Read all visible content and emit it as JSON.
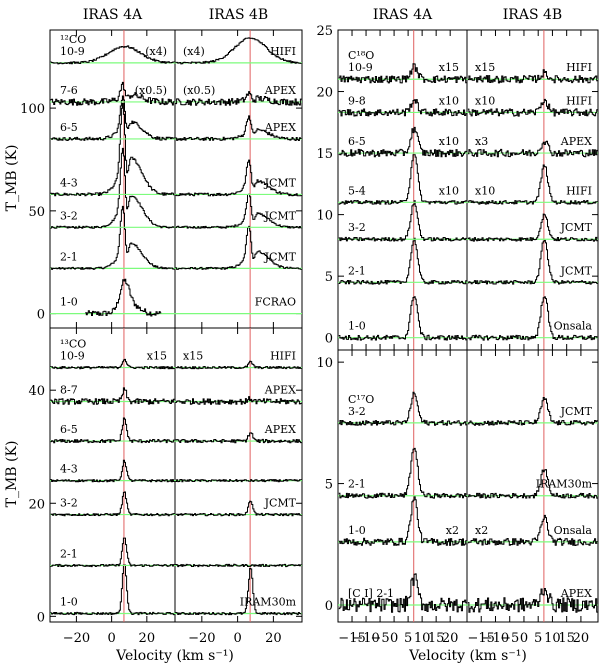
{
  "chart_data": {
    "type": "line",
    "xlabel": "Velocity (km s⁻¹)",
    "ylabel": "T_MB (K)",
    "source_velocity": 7,
    "baseline_color": "#7CFC7C",
    "source_line_color": "#E06060",
    "spectrum_color": "#000000",
    "groups": [
      {
        "id": "12co",
        "species_label": "¹²CO",
        "yticks": [
          0,
          50,
          100
        ],
        "ylim": [
          -7,
          138
        ],
        "xlim": [
          -35,
          36
        ],
        "xticks": [
          -20,
          0,
          20
        ],
        "sources": [
          "IRAS 4A",
          "IRAS 4B"
        ],
        "lines": [
          {
            "transition": "1-0",
            "telescope": "FCRAO",
            "offset": 0,
            "factorA": "",
            "factorB": "",
            "peakA": 12,
            "peakB": 0,
            "noise": 1.4,
            "profile": "fcrao",
            "xminA": -15,
            "xmaxA": 28
          },
          {
            "transition": "2-1",
            "telescope": "JCMT",
            "offset": 22,
            "factorA": "",
            "factorB": "",
            "peakA": 22,
            "peakB": 15,
            "noise": 0.5,
            "profile": "outflow"
          },
          {
            "transition": "3-2",
            "telescope": "JCMT",
            "offset": 42,
            "factorA": "",
            "factorB": "",
            "peakA": 28,
            "peakB": 12,
            "noise": 0.5,
            "profile": "outflow"
          },
          {
            "transition": "4-3",
            "telescope": "JCMT",
            "offset": 58,
            "factorA": "",
            "factorB": "",
            "peakA": 32,
            "peakB": 12,
            "noise": 0.7,
            "profile": "outflow"
          },
          {
            "transition": "6-5",
            "telescope": "APEX",
            "offset": 85,
            "factorA": "",
            "factorB": "",
            "peakA": 15,
            "peakB": 8,
            "noise": 0.8,
            "profile": "outflow"
          },
          {
            "transition": "7-6",
            "telescope": "APEX",
            "offset": 103,
            "factorA": "(x0.5)",
            "factorB": "(x0.5)",
            "peakA": 6,
            "peakB": 3,
            "noise": 1.6,
            "profile": "outflow"
          },
          {
            "transition": "10-9",
            "telescope": "HIFI",
            "offset": 122,
            "factorA": "(x4)",
            "factorB": "(x4)",
            "peakA": 8,
            "peakB": 12,
            "noise": 0.5,
            "profile": "broad"
          }
        ]
      },
      {
        "id": "13co",
        "species_label": "¹³CO",
        "yticks": [
          0,
          20,
          40
        ],
        "ylim": [
          -1,
          51
        ],
        "xlim": [
          -35,
          36
        ],
        "xticks": [
          -20,
          0,
          20
        ],
        "sources": [
          "IRAS 4A",
          "IRAS 4B"
        ],
        "lines": [
          {
            "transition": "1-0",
            "telescope": "IRAM30m",
            "offset": 0.5,
            "factorA": "",
            "factorB": "",
            "peakA": 9,
            "peakB": 8,
            "noise": 0.2,
            "profile": "narrow"
          },
          {
            "transition": "2-1",
            "telescope": "",
            "offset": 9,
            "factorA": "",
            "factorB": "",
            "peakA": 5,
            "peakB": 0,
            "noise": 0.2,
            "profile": "narrow"
          },
          {
            "transition": "3-2",
            "telescope": "JCMT",
            "offset": 18,
            "factorA": "",
            "factorB": "",
            "peakA": 4,
            "peakB": 2.5,
            "noise": 0.2,
            "profile": "narrow"
          },
          {
            "transition": "4-3",
            "telescope": "",
            "offset": 24,
            "factorA": "",
            "factorB": "",
            "peakA": 3.5,
            "peakB": 0,
            "noise": 0.2,
            "profile": "narrow"
          },
          {
            "transition": "6-5",
            "telescope": "APEX",
            "offset": 31,
            "factorA": "",
            "factorB": "",
            "peakA": 4,
            "peakB": 1.5,
            "noise": 0.3,
            "profile": "narrow"
          },
          {
            "transition": "8-7",
            "telescope": "APEX",
            "offset": 38,
            "factorA": "",
            "factorB": "",
            "peakA": 2,
            "peakB": 0.5,
            "noise": 0.5,
            "profile": "narrow"
          },
          {
            "transition": "10-9",
            "telescope": "HIFI",
            "offset": 44,
            "factorA": "x15",
            "factorB": "x15",
            "peakA": 1.5,
            "peakB": 1,
            "noise": 0.2,
            "profile": "narrow"
          }
        ]
      },
      {
        "id": "c18o",
        "species_label": "C¹⁸O",
        "yticks": [
          0,
          5,
          10,
          15,
          20,
          25
        ],
        "ylim": [
          -1,
          25
        ],
        "xlim": [
          -20,
          26
        ],
        "xticks": [
          -15,
          -10,
          -5,
          0,
          5,
          10,
          15,
          20
        ],
        "sources": [
          "IRAS 4A",
          "IRAS 4B"
        ],
        "lines": [
          {
            "transition": "1-0",
            "telescope": "Onsala",
            "offset": 0,
            "factorA": "",
            "factorB": "",
            "peakA": 3.5,
            "peakB": 3.5,
            "noise": 0.2,
            "profile": "narrow"
          },
          {
            "transition": "2-1",
            "telescope": "JCMT",
            "offset": 4.5,
            "factorA": "",
            "factorB": "",
            "peakA": 3.5,
            "peakB": 3.5,
            "noise": 0.15,
            "profile": "narrow"
          },
          {
            "transition": "3-2",
            "telescope": "JCMT",
            "offset": 8,
            "factorA": "",
            "factorB": "",
            "peakA": 3,
            "peakB": 2,
            "noise": 0.15,
            "profile": "narrow"
          },
          {
            "transition": "5-4",
            "telescope": "HIFI",
            "offset": 11,
            "factorA": "x10",
            "factorB": "x10",
            "peakA": 4,
            "peakB": 3,
            "noise": 0.15,
            "profile": "narrow"
          },
          {
            "transition": "6-5",
            "telescope": "APEX",
            "offset": 15,
            "factorA": "x10",
            "factorB": "x3",
            "peakA": 2,
            "peakB": 1,
            "noise": 0.3,
            "profile": "narrow"
          },
          {
            "transition": "9-8",
            "telescope": "HIFI",
            "offset": 18.3,
            "factorA": "x10",
            "factorB": "x10",
            "peakA": 1,
            "peakB": 1,
            "noise": 0.3,
            "profile": "narrow"
          },
          {
            "transition": "10-9",
            "telescope": "HIFI",
            "offset": 21,
            "factorA": "x15",
            "factorB": "x15",
            "peakA": 1,
            "peakB": 0.5,
            "noise": 0.3,
            "profile": "narrow"
          }
        ]
      },
      {
        "id": "c17o",
        "species_label": "C¹⁷O",
        "yticks": [
          0,
          5,
          10
        ],
        "ylim": [
          -0.7,
          10.5
        ],
        "xlim": [
          -20,
          26
        ],
        "xticks": [
          -15,
          -10,
          -5,
          0,
          5,
          10,
          15,
          20
        ],
        "sources": [
          "IRAS 4A",
          "IRAS 4B"
        ],
        "lines": [
          {
            "transition": "[C I] 2-1",
            "telescope": "APEX",
            "offset": 0,
            "factorA": "",
            "factorB": "",
            "peakA": 1.1,
            "peakB": 0.7,
            "noise": 0.3,
            "profile": "narrow"
          },
          {
            "transition": "1-0",
            "telescope": "Onsala",
            "offset": 2.6,
            "factorA": "x2",
            "factorB": "x2",
            "peakA": 1.8,
            "peakB": 1.0,
            "noise": 0.15,
            "profile": "narrow"
          },
          {
            "transition": "2-1",
            "telescope": "IRAM30m",
            "offset": 4.5,
            "factorA": "",
            "factorB": "",
            "peakA": 2,
            "peakB": 1.1,
            "noise": 0.1,
            "profile": "narrow"
          },
          {
            "transition": "3-2",
            "telescope": "JCMT",
            "offset": 7.5,
            "factorA": "",
            "factorB": "",
            "peakA": 1.2,
            "peakB": 1.0,
            "noise": 0.1,
            "profile": "narrow"
          }
        ]
      }
    ]
  }
}
